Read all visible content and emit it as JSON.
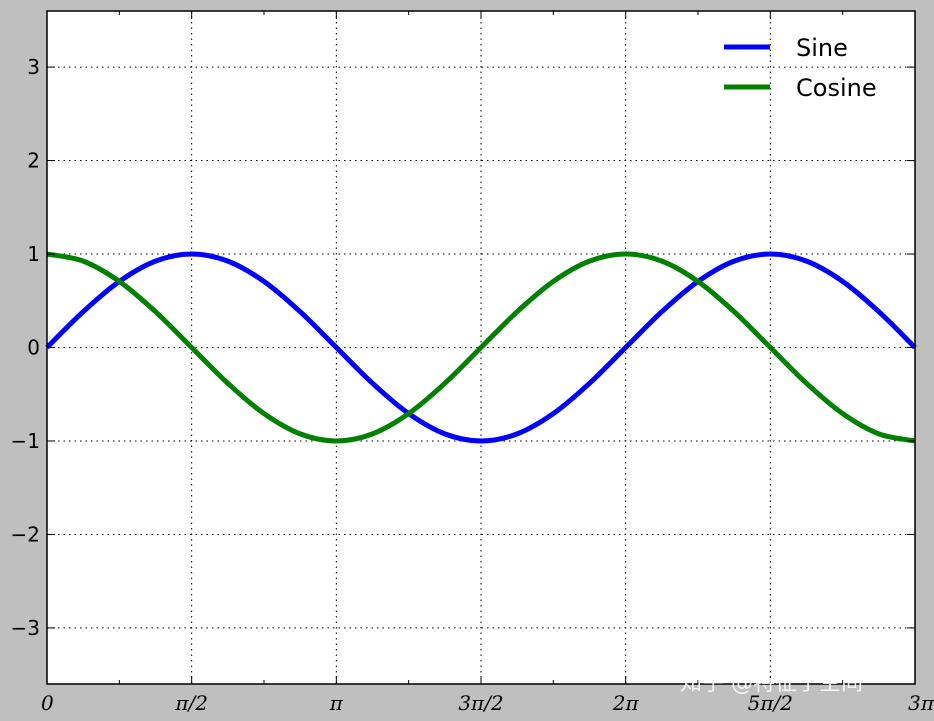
{
  "chart_data": {
    "type": "line",
    "x_range": [
      0,
      9.42477796
    ],
    "ylim": [
      -3.6,
      3.6
    ],
    "grid": true,
    "grid_style": "dotted",
    "legend_placement": "top-right",
    "xticks": [
      {
        "value": 0,
        "label": "0"
      },
      {
        "value": 1.5707963,
        "label": "π/2"
      },
      {
        "value": 3.1415927,
        "label": "π"
      },
      {
        "value": 4.712389,
        "label": "3π/2"
      },
      {
        "value": 6.2831853,
        "label": "2π"
      },
      {
        "value": 7.8539816,
        "label": "5π/2"
      },
      {
        "value": 9.424778,
        "label": "3π"
      }
    ],
    "yticks": [
      {
        "value": 3,
        "label": "3"
      },
      {
        "value": 2,
        "label": "2"
      },
      {
        "value": 1,
        "label": "1"
      },
      {
        "value": 0,
        "label": "0"
      },
      {
        "value": -1,
        "label": "−1"
      },
      {
        "value": -2,
        "label": "−2"
      },
      {
        "value": -3,
        "label": "−3"
      }
    ],
    "series": [
      {
        "name": "Sine",
        "color": "#0000ff",
        "x": [
          0,
          0.3927,
          0.7854,
          1.1781,
          1.5708,
          1.9635,
          2.3562,
          2.7489,
          3.1416,
          3.5343,
          3.927,
          4.3197,
          4.7124,
          5.1051,
          5.4978,
          5.8905,
          6.2832,
          6.6759,
          7.0686,
          7.4613,
          7.854,
          8.2467,
          8.6394,
          9.0321,
          9.4248
        ],
        "y": [
          0,
          0.383,
          0.707,
          0.924,
          1,
          0.924,
          0.707,
          0.383,
          0,
          -0.383,
          -0.707,
          -0.924,
          -1,
          -0.924,
          -0.707,
          -0.383,
          0,
          0.383,
          0.707,
          0.924,
          1,
          0.924,
          0.707,
          0.383,
          0
        ]
      },
      {
        "name": "Cosine",
        "color": "#008000",
        "x": [
          0,
          0.3927,
          0.7854,
          1.1781,
          1.5708,
          1.9635,
          2.3562,
          2.7489,
          3.1416,
          3.5343,
          3.927,
          4.3197,
          4.7124,
          5.1051,
          5.4978,
          5.8905,
          6.2832,
          6.6759,
          7.0686,
          7.4613,
          7.854,
          8.2467,
          8.6394,
          9.0321,
          9.4248
        ],
        "y": [
          1,
          0.924,
          0.707,
          0.383,
          0,
          -0.383,
          -0.707,
          -0.924,
          -1,
          -0.924,
          -0.707,
          -0.383,
          0,
          0.383,
          0.707,
          0.924,
          1,
          0.924,
          0.707,
          0.383,
          0,
          -0.383,
          -0.707,
          -0.924,
          -1
        ]
      }
    ]
  },
  "watermark": "知乎 @特征子空间"
}
